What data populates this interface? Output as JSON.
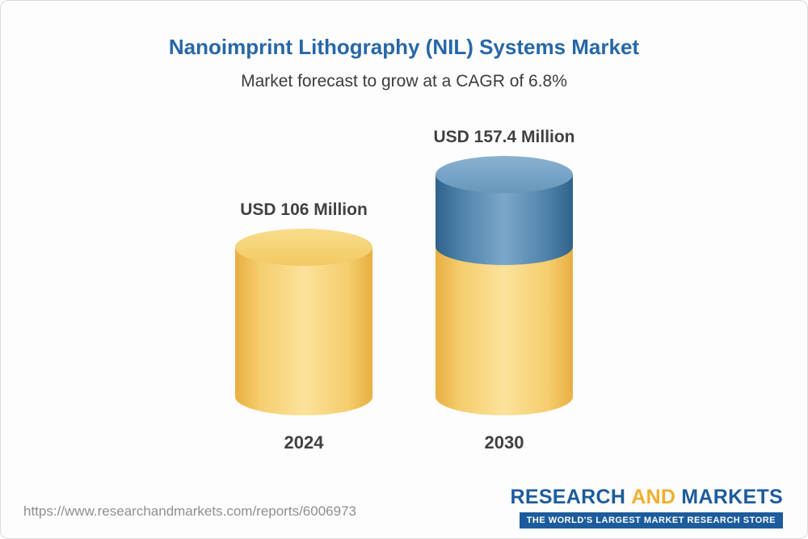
{
  "header": {
    "title": "Nanoimprint Lithography (NIL) Systems Market",
    "subtitle": "Market forecast to grow at a CAGR of 6.8%"
  },
  "chart_data": {
    "type": "bar",
    "title": "Nanoimprint Lithography (NIL) Systems Market",
    "subtitle": "Market forecast to grow at a CAGR of 6.8%",
    "unit": "USD Million",
    "categories": [
      "2024",
      "2030"
    ],
    "values": [
      106,
      157.4
    ],
    "value_labels": [
      "USD 106 Million",
      "USD 157.4 Million"
    ],
    "ylim": [
      0,
      170
    ],
    "grid": false,
    "legend": "none",
    "bars": [
      {
        "category": "2024",
        "total": 106,
        "label": "USD 106 Million",
        "segments": [
          {
            "name": "base-2024",
            "value": 106,
            "color": "yellow"
          }
        ]
      },
      {
        "category": "2030",
        "total": 157.4,
        "label": "USD 157.4 Million",
        "segments": [
          {
            "name": "base-2024",
            "value": 106,
            "color": "yellow"
          },
          {
            "name": "growth-to-2030",
            "value": 51.4,
            "color": "blue"
          }
        ]
      }
    ],
    "colors": {
      "yellow": "#f6cf6e",
      "blue": "#6e9ec2"
    }
  },
  "footer": {
    "url": "https://www.researchandmarkets.com/reports/6006973",
    "logo": {
      "research": "RESEARCH",
      "and": "AND",
      "markets": "MARKETS",
      "tagline": "THE WORLD'S LARGEST MARKET RESEARCH STORE"
    }
  }
}
